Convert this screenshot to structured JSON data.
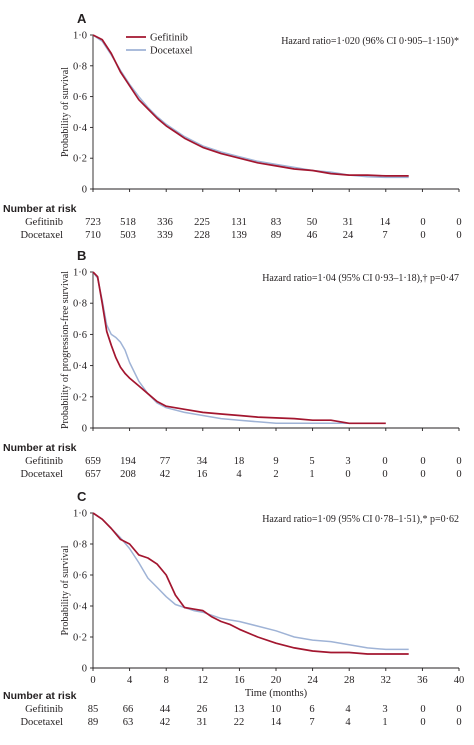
{
  "colors": {
    "gefitinib": "#a3162f",
    "docetaxel": "#9fb3d6",
    "axis": "#231f20",
    "text": "#231f20"
  },
  "legend": {
    "gefitinib": "Gefitinib",
    "docetaxel": "Docetaxel"
  },
  "risk_header": "Number at risk",
  "risk_labels": [
    "Gefitinib",
    "Docetaxel"
  ],
  "x_axis_label": "Time (months)",
  "chart_data": [
    {
      "type": "line",
      "panel_letter": "A",
      "title": "",
      "hazard_text": "Hazard ratio=1·020 (96% CI 0·905–1·150)*",
      "ylabel": "Probability of survival",
      "xlim": [
        0,
        40
      ],
      "ylim": [
        0,
        1
      ],
      "xticks": [],
      "yticks": [
        "0",
        "0·2",
        "0·4",
        "0·6",
        "0·8",
        "1·0"
      ],
      "grid": false,
      "legend_position": "top-left",
      "series": [
        {
          "name": "Gefitinib",
          "x": [
            0,
            1,
            2,
            3,
            4,
            5,
            6,
            7,
            8,
            9,
            10,
            12,
            14,
            16,
            18,
            20,
            22,
            24,
            26,
            28,
            30,
            32,
            34.5
          ],
          "y": [
            1.0,
            0.97,
            0.88,
            0.76,
            0.67,
            0.58,
            0.52,
            0.46,
            0.41,
            0.37,
            0.33,
            0.27,
            0.23,
            0.2,
            0.17,
            0.15,
            0.13,
            0.12,
            0.1,
            0.09,
            0.09,
            0.085,
            0.085
          ]
        },
        {
          "name": "Docetaxel",
          "x": [
            0,
            1,
            2,
            3,
            4,
            5,
            6,
            7,
            8,
            9,
            10,
            12,
            14,
            16,
            18,
            20,
            22,
            24,
            26,
            28,
            30,
            32,
            34.5
          ],
          "y": [
            1.0,
            0.96,
            0.87,
            0.77,
            0.68,
            0.6,
            0.53,
            0.47,
            0.42,
            0.38,
            0.34,
            0.28,
            0.24,
            0.21,
            0.18,
            0.16,
            0.14,
            0.12,
            0.11,
            0.09,
            0.08,
            0.075,
            0.075
          ]
        }
      ],
      "risk": {
        "gefitinib": [
          "723",
          "518",
          "336",
          "225",
          "131",
          "83",
          "50",
          "31",
          "14",
          "0",
          "0"
        ],
        "docetaxel": [
          "710",
          "503",
          "339",
          "228",
          "139",
          "89",
          "46",
          "24",
          "7",
          "0",
          "0"
        ]
      }
    },
    {
      "type": "line",
      "panel_letter": "B",
      "title": "",
      "hazard_text": "Hazard ratio=1·04 (95% CI 0·93–1·18),† p=0·47",
      "ylabel": "Probability of progression-free survival",
      "xlim": [
        0,
        40
      ],
      "ylim": [
        0,
        1
      ],
      "xticks": [],
      "yticks": [
        "0",
        "0·2",
        "0·4",
        "0·6",
        "0·8",
        "1·0"
      ],
      "grid": false,
      "legend_position": "",
      "series": [
        {
          "name": "Gefitinib",
          "x": [
            0,
            0.5,
            1,
            1.5,
            2,
            2.5,
            3,
            3.5,
            4,
            5,
            6,
            7,
            8,
            10,
            12,
            14,
            16,
            18,
            20,
            22,
            24,
            26,
            28,
            30,
            32
          ],
          "y": [
            1.0,
            0.97,
            0.8,
            0.62,
            0.53,
            0.45,
            0.39,
            0.35,
            0.32,
            0.27,
            0.22,
            0.17,
            0.14,
            0.12,
            0.1,
            0.09,
            0.08,
            0.07,
            0.065,
            0.06,
            0.05,
            0.05,
            0.03,
            0.03,
            0.03
          ]
        },
        {
          "name": "Docetaxel",
          "x": [
            0,
            0.5,
            1,
            1.5,
            2,
            2.5,
            3,
            3.5,
            4,
            5,
            6,
            7,
            8,
            10,
            12,
            14,
            16,
            18,
            20,
            22,
            24,
            26,
            28
          ],
          "y": [
            1.0,
            0.96,
            0.82,
            0.66,
            0.6,
            0.58,
            0.55,
            0.5,
            0.42,
            0.3,
            0.22,
            0.16,
            0.13,
            0.1,
            0.08,
            0.06,
            0.05,
            0.04,
            0.03,
            0.03,
            0.03,
            0.03,
            0.03
          ]
        }
      ],
      "risk": {
        "gefitinib": [
          "659",
          "194",
          "77",
          "34",
          "18",
          "9",
          "5",
          "3",
          "0",
          "0",
          "0"
        ],
        "docetaxel": [
          "657",
          "208",
          "42",
          "16",
          "4",
          "2",
          "1",
          "0",
          "0",
          "0",
          "0"
        ]
      }
    },
    {
      "type": "line",
      "panel_letter": "C",
      "title": "",
      "hazard_text": "Hazard ratio=1·09 (95% CI 0·78–1·51),* p=0·62",
      "ylabel": "Probability of survival",
      "xlabel": "Time (months)",
      "xlim": [
        0,
        40
      ],
      "ylim": [
        0,
        1
      ],
      "xticks": [
        "0",
        "4",
        "8",
        "12",
        "16",
        "20",
        "24",
        "28",
        "32",
        "36",
        "40"
      ],
      "yticks": [
        "0",
        "0·2",
        "0·4",
        "0·6",
        "0·8",
        "1·0"
      ],
      "grid": false,
      "legend_position": "",
      "series": [
        {
          "name": "Gefitinib",
          "x": [
            0,
            1,
            2,
            3,
            4,
            5,
            6,
            7,
            8,
            9,
            10,
            11,
            12,
            13,
            14,
            15,
            16,
            18,
            20,
            22,
            24,
            26,
            28,
            30,
            32,
            34.5
          ],
          "y": [
            1.0,
            0.96,
            0.9,
            0.83,
            0.8,
            0.73,
            0.71,
            0.67,
            0.6,
            0.47,
            0.39,
            0.38,
            0.37,
            0.33,
            0.3,
            0.28,
            0.25,
            0.2,
            0.16,
            0.13,
            0.11,
            0.1,
            0.1,
            0.09,
            0.09,
            0.09
          ]
        },
        {
          "name": "Docetaxel",
          "x": [
            0,
            1,
            2,
            3,
            4,
            5,
            6,
            7,
            8,
            9,
            10,
            11,
            12,
            13,
            14,
            15,
            16,
            18,
            20,
            22,
            24,
            26,
            28,
            30,
            32,
            34.5
          ],
          "y": [
            1.0,
            0.96,
            0.9,
            0.84,
            0.77,
            0.68,
            0.58,
            0.52,
            0.46,
            0.41,
            0.39,
            0.37,
            0.36,
            0.34,
            0.32,
            0.31,
            0.3,
            0.27,
            0.24,
            0.2,
            0.18,
            0.17,
            0.15,
            0.13,
            0.12,
            0.12
          ]
        }
      ],
      "risk": {
        "gefitinib": [
          "85",
          "66",
          "44",
          "26",
          "13",
          "10",
          "6",
          "4",
          "3",
          "0",
          "0"
        ],
        "docetaxel": [
          "89",
          "63",
          "42",
          "31",
          "22",
          "14",
          "7",
          "4",
          "1",
          "0",
          "0"
        ]
      }
    }
  ]
}
